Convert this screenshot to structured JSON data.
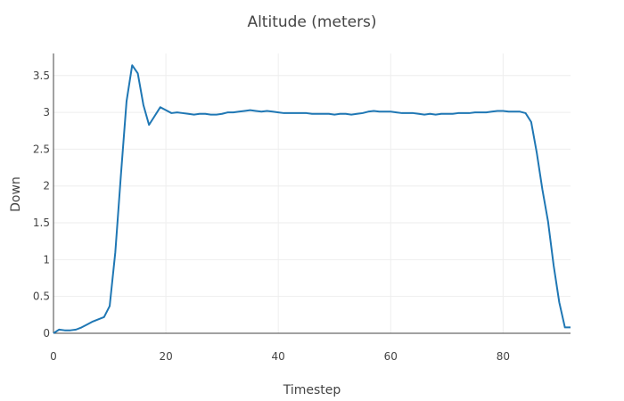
{
  "chart_data": {
    "type": "line",
    "title": "Altitude (meters)",
    "xlabel": "Timestep",
    "ylabel": "Down",
    "xlim": [
      0,
      92
    ],
    "ylim": [
      0,
      3.8
    ],
    "x_ticks": [
      0,
      20,
      40,
      60,
      80
    ],
    "y_ticks": [
      0,
      0.5,
      1,
      1.5,
      2,
      2.5,
      3,
      3.5
    ],
    "x_tick_labels": [
      "0",
      "20",
      "40",
      "60",
      "80"
    ],
    "y_tick_labels": [
      "0",
      "0.5",
      "1",
      "1.5",
      "2",
      "2.5",
      "3",
      "3.5"
    ],
    "grid": true,
    "legend": false,
    "color": "#1f77b4",
    "series": [
      {
        "x": [
          0,
          1,
          2,
          3,
          4,
          5,
          6,
          7,
          8,
          9,
          10,
          11,
          12,
          13,
          14,
          15,
          16,
          17,
          18,
          19,
          20,
          21,
          22,
          23,
          24,
          25,
          26,
          27,
          28,
          29,
          30,
          31,
          32,
          33,
          34,
          35,
          36,
          37,
          38,
          39,
          40,
          41,
          42,
          43,
          44,
          45,
          46,
          47,
          48,
          49,
          50,
          51,
          52,
          53,
          54,
          55,
          56,
          57,
          58,
          59,
          60,
          61,
          62,
          63,
          64,
          65,
          66,
          67,
          68,
          69,
          70,
          71,
          72,
          73,
          74,
          75,
          76,
          77,
          78,
          79,
          80,
          81,
          82,
          83,
          84,
          85,
          86,
          87,
          88,
          89,
          90,
          91,
          92
        ],
        "y": [
          0,
          0.05,
          0.04,
          0.04,
          0.05,
          0.08,
          0.12,
          0.16,
          0.19,
          0.22,
          0.37,
          1.1,
          2.15,
          3.15,
          3.64,
          3.53,
          3.1,
          2.83,
          2.95,
          3.07,
          3.03,
          2.99,
          3.0,
          2.99,
          2.98,
          2.97,
          2.98,
          2.98,
          2.97,
          2.97,
          2.98,
          3.0,
          3.0,
          3.01,
          3.02,
          3.03,
          3.02,
          3.01,
          3.02,
          3.01,
          3.0,
          2.99,
          2.99,
          2.99,
          2.99,
          2.99,
          2.98,
          2.98,
          2.98,
          2.98,
          2.97,
          2.98,
          2.98,
          2.97,
          2.98,
          2.99,
          3.01,
          3.02,
          3.01,
          3.01,
          3.01,
          3.0,
          2.99,
          2.99,
          2.99,
          2.98,
          2.97,
          2.98,
          2.97,
          2.98,
          2.98,
          2.98,
          2.99,
          2.99,
          2.99,
          3.0,
          3.0,
          3.0,
          3.01,
          3.02,
          3.02,
          3.01,
          3.01,
          3.01,
          2.99,
          2.87,
          2.45,
          1.95,
          1.52,
          0.92,
          0.42,
          0.08,
          0.08
        ]
      }
    ]
  }
}
